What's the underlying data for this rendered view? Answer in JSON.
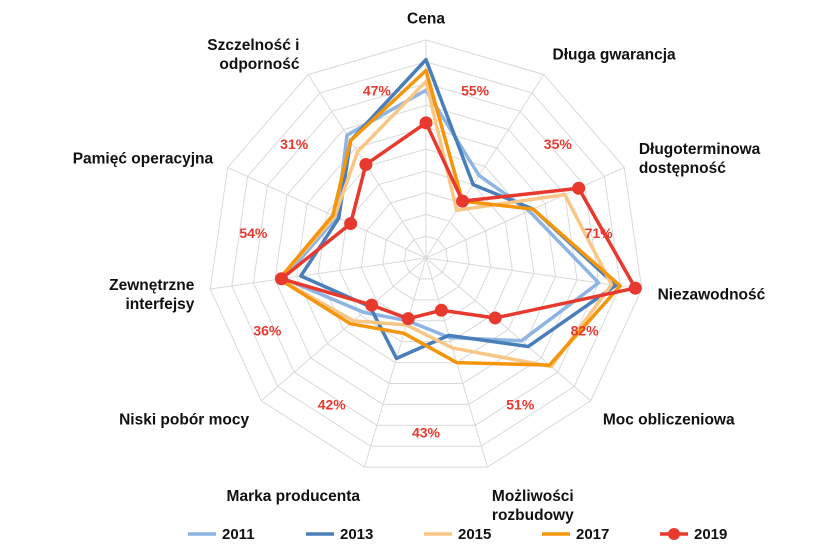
{
  "chart_data": {
    "type": "radar",
    "title": "",
    "axes": [
      "Cena",
      "Długa gwarancja",
      "Długoterminowa dostępność",
      "Niezawodność",
      "Moc obliczeniowa",
      "Możliwości rozbudowy",
      "Marka producenta",
      "Niski pobór mocy",
      "Zewnętrzne interfejsy",
      "Pamięć operacyjna",
      "Szczelność i odporność"
    ],
    "axis_label_lines": [
      [
        "Cena"
      ],
      [
        "Długa gwarancja"
      ],
      [
        "Długoterminowa",
        "dostępność"
      ],
      [
        "Niezawodność"
      ],
      [
        "Moc obliczeniowa"
      ],
      [
        "Możliwości",
        "rozbudowy"
      ],
      [
        "Marka producenta"
      ],
      [
        "Niski pobór mocy"
      ],
      [
        "Zewnętrzne",
        "interfejsy"
      ],
      [
        "Pamięć operacyjna"
      ],
      [
        "Szczelność i",
        "odporność"
      ]
    ],
    "rmax": 100,
    "rings": 10,
    "series": [
      {
        "name": "2011",
        "color": "#8db4e2",
        "marker": "none",
        "values": [
          77,
          45,
          52,
          80,
          58,
          38,
          30,
          38,
          66,
          45,
          67
        ]
      },
      {
        "name": "2013",
        "color": "#4a7ebb",
        "marker": "none",
        "values": [
          91,
          40,
          54,
          88,
          62,
          37,
          48,
          34,
          58,
          44,
          64
        ]
      },
      {
        "name": "2015",
        "color": "#f9c686",
        "marker": "none",
        "values": [
          81,
          26,
          70,
          86,
          76,
          43,
          32,
          44,
          68,
          46,
          58
        ]
      },
      {
        "name": "2017",
        "color": "#f5960a",
        "marker": "none",
        "values": [
          86,
          31,
          54,
          90,
          75,
          50,
          36,
          46,
          68,
          47,
          64
        ]
      },
      {
        "name": "2019",
        "color": "#e8392f",
        "marker": "circle",
        "values": [
          62,
          31,
          77,
          97,
          42,
          25,
          29,
          33,
          67,
          38,
          51
        ]
      }
    ],
    "data_labels": [
      "55%",
      "35%",
      "71%",
      "82%",
      "51%",
      "43%",
      "42%",
      "36%",
      "54%",
      "31%",
      "47%"
    ],
    "legend_position": "bottom",
    "grid": true
  }
}
